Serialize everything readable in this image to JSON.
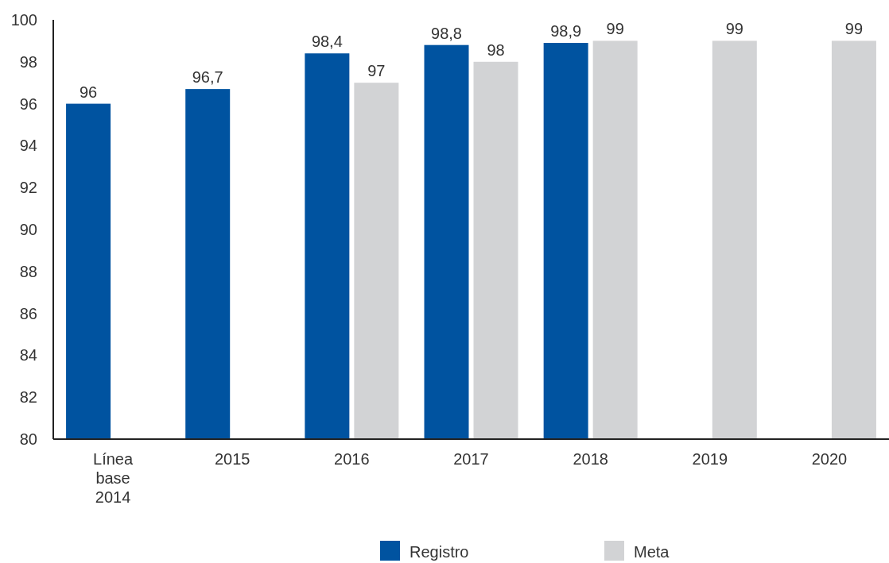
{
  "chart_data": {
    "type": "bar",
    "categories": [
      "Línea base 2014",
      "2015",
      "2016",
      "2017",
      "2018",
      "2019",
      "2020"
    ],
    "series": [
      {
        "name": "Registro",
        "color": "#0053a0",
        "values": [
          96,
          96.7,
          98.4,
          98.8,
          98.9,
          null,
          null
        ],
        "value_labels": [
          "96",
          "96,7",
          "98,4",
          "98,8",
          "98,9",
          null,
          null
        ]
      },
      {
        "name": "Meta",
        "color": "#d2d3d5",
        "values": [
          null,
          null,
          97,
          98,
          99,
          99,
          99
        ],
        "value_labels": [
          null,
          null,
          "97",
          "98",
          "99",
          "99",
          "99"
        ]
      }
    ],
    "ylim": [
      80,
      100
    ],
    "yticks": [
      80,
      82,
      84,
      86,
      88,
      90,
      92,
      94,
      96,
      98,
      100
    ],
    "grid": false,
    "legend": "bottom"
  }
}
